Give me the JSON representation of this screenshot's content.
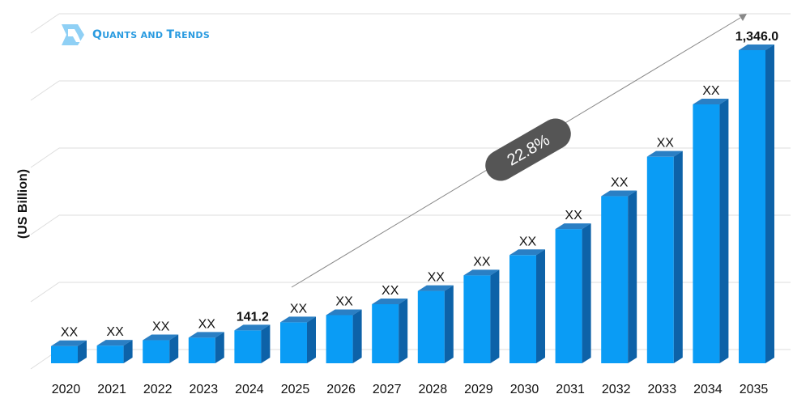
{
  "brand": {
    "logo_text_parts": [
      "Q",
      "UANTS AND ",
      "T",
      "RENDS"
    ]
  },
  "chart_data": {
    "type": "bar",
    "title": "",
    "xlabel": "",
    "ylabel": "(US Billion)",
    "categories": [
      "2020",
      "2021",
      "2022",
      "2023",
      "2024",
      "2025",
      "2026",
      "2027",
      "2028",
      "2029",
      "2030",
      "2031",
      "2032",
      "2033",
      "2034",
      "2035"
    ],
    "values": [
      74,
      76,
      99,
      110,
      141.2,
      176,
      207,
      254,
      311,
      378,
      465,
      577,
      718,
      888,
      1113,
      1346.0
    ],
    "data_labels": [
      "XX",
      "XX",
      "XX",
      "XX",
      "141.2",
      "XX",
      "XX",
      "XX",
      "XX",
      "XX",
      "XX",
      "XX",
      "XX",
      "XX",
      "XX",
      "1,346.0"
    ],
    "ylim": [
      0,
      1450
    ],
    "grid": true,
    "annotation": {
      "text": "22.8%",
      "type": "cagr-arrow"
    },
    "colors": {
      "bar_front": "#0a9cf5",
      "bar_top": "#2a7fc4",
      "bar_side": "#0d62a8",
      "grid": "#dddddd",
      "badge": "#555555"
    }
  }
}
